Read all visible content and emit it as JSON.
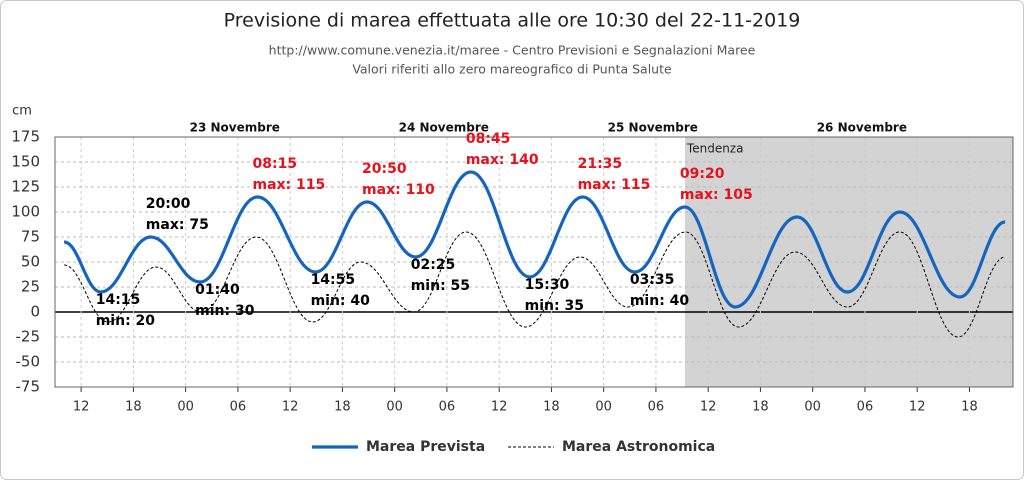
{
  "chart_data": {
    "type": "line",
    "title": "Previsione di marea effettuata alle ore 10:30 del 22-11-2019",
    "subtitle": [
      "http://www.comune.venezia.it/maree - Centro Previsioni e Segnalazioni Maree",
      "Valori riferiti allo zero mareografico di Punta Salute"
    ],
    "y_label": "cm",
    "ylim": [
      -75,
      175
    ],
    "yticks": [
      -75,
      -50,
      -25,
      0,
      25,
      50,
      75,
      100,
      125,
      150,
      175
    ],
    "xlim": [
      9,
      119
    ],
    "xticks": [
      12,
      18,
      {
        "value": 24,
        "label": "00"
      },
      {
        "value": 30,
        "label": "06"
      },
      {
        "value": 36,
        "label": "12"
      },
      {
        "value": 42,
        "label": "18"
      },
      {
        "value": 48,
        "label": "00"
      },
      {
        "value": 54,
        "label": "06"
      },
      {
        "value": 60,
        "label": "12"
      },
      {
        "value": 66,
        "label": "18"
      },
      {
        "value": 72,
        "label": "00"
      },
      {
        "value": 78,
        "label": "06"
      },
      {
        "value": 84,
        "label": "12"
      },
      {
        "value": 90,
        "label": "18"
      },
      {
        "value": 96,
        "label": "00"
      },
      {
        "value": 102,
        "label": "06"
      },
      {
        "value": 108,
        "label": "12"
      },
      {
        "value": 114,
        "label": "18"
      }
    ],
    "day_labels": [
      {
        "value": 24,
        "label": "23 Novembre"
      },
      {
        "value": 48,
        "label": "24 Novembre"
      },
      {
        "value": 72,
        "label": "25 Novembre"
      },
      {
        "value": 96,
        "label": "26 Novembre"
      }
    ],
    "trend": {
      "label": "Tendenza",
      "start": 81.33,
      "color": "#d3d3d3"
    },
    "grid": true,
    "series": [
      {
        "name": "Marea Prevista",
        "color": "#1565c0",
        "style": "solid",
        "x": [
          10.05,
          14.25,
          20,
          25.67,
          32.25,
          38.92,
          44.83,
          50.42,
          56.75,
          63.5,
          69.58,
          75.58,
          81.33,
          87.1,
          94.2,
          100,
          106,
          112.9,
          118.1
        ],
        "values": [
          70,
          20,
          75,
          30,
          115,
          40,
          110,
          55,
          140,
          35,
          115,
          40,
          105,
          5,
          95,
          20,
          100,
          15,
          90
        ],
        "time_labels": [
          null,
          "14:15",
          "20:00",
          "01:40",
          "08:15",
          "14:55",
          "20:50",
          "02:25",
          "08:45",
          "15:30",
          "21:35",
          "03:35",
          "09:20",
          null,
          null,
          null,
          null,
          null,
          null
        ],
        "value_labels": [
          null,
          "min: 20",
          "max: 75",
          "min: 30",
          "max: 115",
          "min: 40",
          "max: 110",
          "min: 55",
          "max: 140",
          "min: 35",
          "max: 115",
          "min: 40",
          "max: 105",
          null,
          null,
          null,
          null,
          null,
          null
        ],
        "value_label_colors": [
          null,
          "#000000",
          "#000000",
          "#000000",
          "#e8101b",
          "#000000",
          "#e8101b",
          "#000000",
          "#e8101b",
          "#000000",
          "#e8101b",
          "#000000",
          "#e8101b",
          null,
          null,
          null,
          null,
          null,
          null
        ]
      },
      {
        "name": "Marea Astronomica",
        "color": "#000000",
        "style": "dashed",
        "x": [
          10.05,
          15.1,
          20.6,
          25.8,
          32.1,
          38.6,
          44.1,
          50.2,
          56.2,
          63,
          69.3,
          74.8,
          81.4,
          87.5,
          94,
          100,
          106,
          112.7,
          118.1
        ],
        "values": [
          47,
          -10,
          45,
          0,
          75,
          -10,
          50,
          0,
          80,
          -15,
          55,
          5,
          80,
          -15,
          60,
          5,
          80,
          -25,
          55
        ]
      }
    ]
  }
}
